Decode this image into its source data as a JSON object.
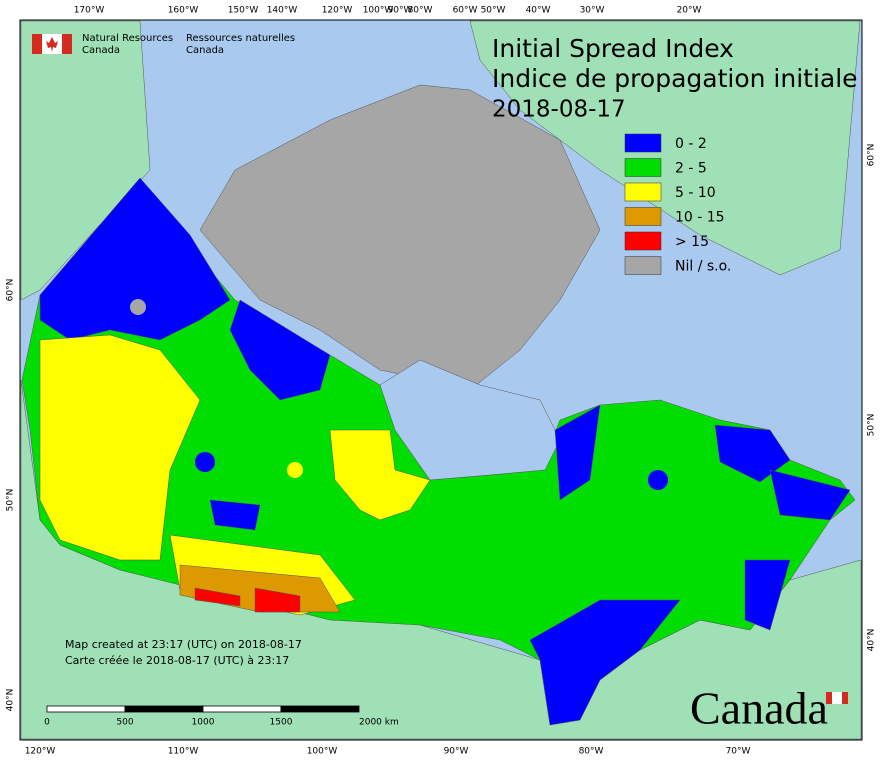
{
  "header": {
    "agency_en": [
      "Natural Resources",
      "Canada"
    ],
    "agency_fr": [
      "Ressources naturelles",
      "Canada"
    ]
  },
  "title": {
    "en": "Initial Spread Index",
    "fr": "Indice de propagation initiale",
    "date": "2018-08-17"
  },
  "legend": [
    {
      "label": "0 - 2",
      "color": "#0000ff"
    },
    {
      "label": "2 - 5",
      "color": "#00dd00"
    },
    {
      "label": "5 - 10",
      "color": "#ffff00"
    },
    {
      "label": "10 - 15",
      "color": "#dd9900"
    },
    {
      "label": "> 15",
      "color": "#ff0000"
    },
    {
      "label": "Nil / s.o.",
      "color": "#a6a6a6"
    }
  ],
  "graticule": {
    "top": [
      "170°W",
      "160°W",
      "150°W",
      "140°W",
      "120°W",
      "100°W",
      "90°W",
      "80°W",
      "60°W",
      "50°W",
      "40°W",
      "30°W",
      "20°W"
    ],
    "bottom": [
      "120°W",
      "110°W",
      "100°W",
      "90°W",
      "80°W",
      "70°W"
    ],
    "left": [
      "60°N",
      "50°N",
      "40°N"
    ],
    "right": [
      "60°N",
      "50°N",
      "40°N"
    ]
  },
  "footer": {
    "created_en": "Map created at 23:17 (UTC) on 2018-08-17",
    "created_fr": "Carte créée le 2018-08-17 (UTC) à 23:17"
  },
  "scale_bar": {
    "labels": [
      "0",
      "500",
      "1000",
      "1500",
      "2000 km"
    ]
  },
  "wordmark": "Canada"
}
